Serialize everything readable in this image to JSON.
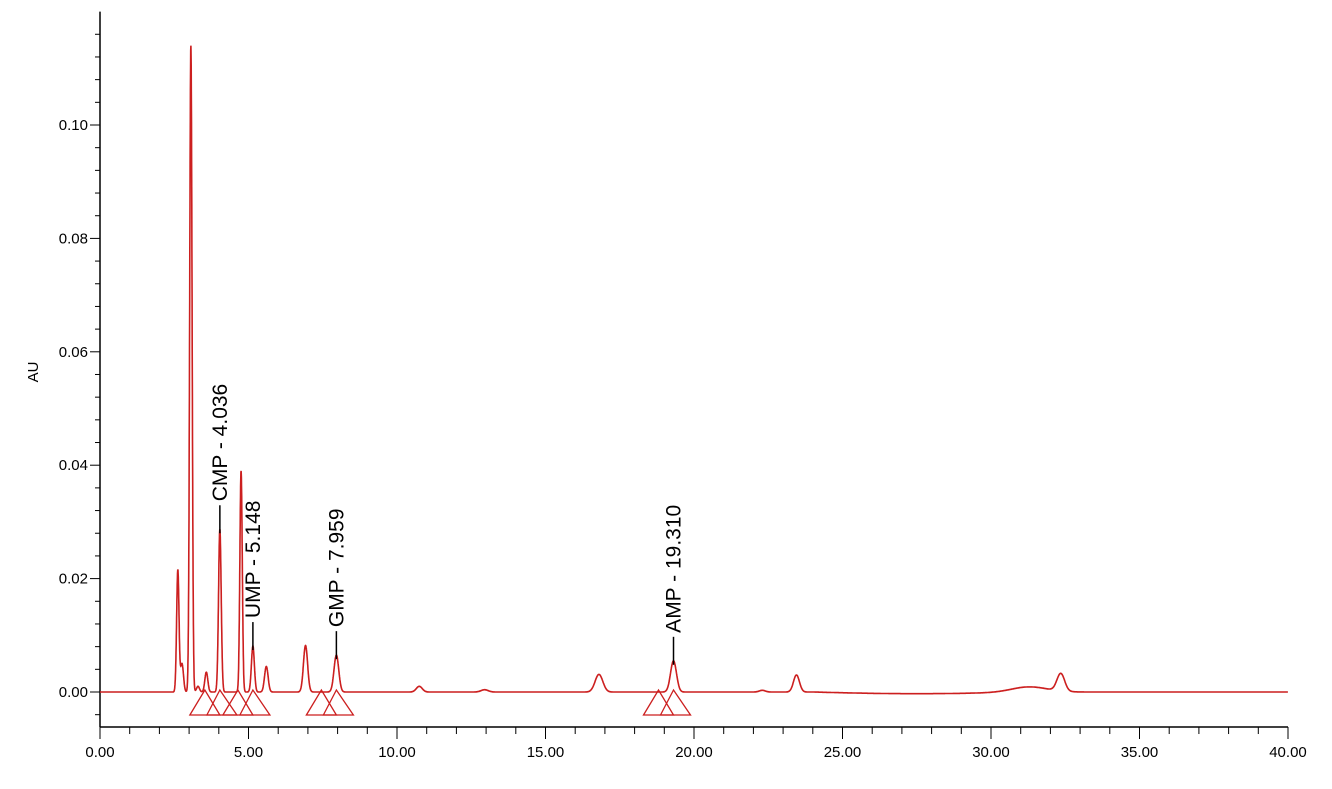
{
  "chart_data": {
    "type": "line",
    "title": "",
    "xlabel": "",
    "ylabel": "AU",
    "xlim": [
      0,
      40
    ],
    "ylim": [
      -0.006,
      0.12
    ],
    "x_ticks": [
      "0.00",
      "5.00",
      "10.00",
      "15.00",
      "20.00",
      "25.00",
      "30.00",
      "35.00",
      "40.00"
    ],
    "y_ticks": [
      "0.00",
      "0.02",
      "0.04",
      "0.06",
      "0.08",
      "0.10"
    ],
    "grid": false,
    "line_color": "#cc1f1f",
    "peaks": [
      {
        "t": 2.62,
        "h": 0.0215,
        "w": 0.04
      },
      {
        "t": 2.76,
        "h": 0.005,
        "w": 0.05
      },
      {
        "t": 3.06,
        "h": 0.114,
        "w": 0.04
      },
      {
        "t": 3.3,
        "h": 0.001,
        "w": 0.05
      },
      {
        "t": 3.58,
        "h": 0.0035,
        "w": 0.05
      },
      {
        "t": 4.036,
        "h": 0.0287,
        "w": 0.045
      },
      {
        "t": 4.75,
        "h": 0.039,
        "w": 0.04
      },
      {
        "t": 5.148,
        "h": 0.0081,
        "w": 0.05
      },
      {
        "t": 5.6,
        "h": 0.0045,
        "w": 0.06
      },
      {
        "t": 6.92,
        "h": 0.0082,
        "w": 0.07
      },
      {
        "t": 7.959,
        "h": 0.0065,
        "w": 0.08
      },
      {
        "t": 10.75,
        "h": 0.001,
        "w": 0.1
      },
      {
        "t": 12.95,
        "h": 0.0004,
        "w": 0.12
      },
      {
        "t": 16.8,
        "h": 0.0031,
        "w": 0.13
      },
      {
        "t": 19.31,
        "h": 0.0055,
        "w": 0.1
      },
      {
        "t": 22.3,
        "h": 0.0003,
        "w": 0.1
      },
      {
        "t": 23.45,
        "h": 0.003,
        "w": 0.1
      },
      {
        "t": 31.3,
        "h": 0.0009,
        "w": 0.6
      },
      {
        "t": 32.35,
        "h": 0.0031,
        "w": 0.13
      }
    ],
    "annotations": [
      {
        "label": "CMP - 4.036",
        "t": 4.036,
        "h": 0.0287
      },
      {
        "label": "UMP - 5.148",
        "t": 5.148,
        "h": 0.0081
      },
      {
        "label": "GMP - 7.959",
        "t": 7.959,
        "h": 0.0065
      },
      {
        "label": "AMP - 19.310",
        "t": 19.31,
        "h": 0.0055
      }
    ]
  }
}
